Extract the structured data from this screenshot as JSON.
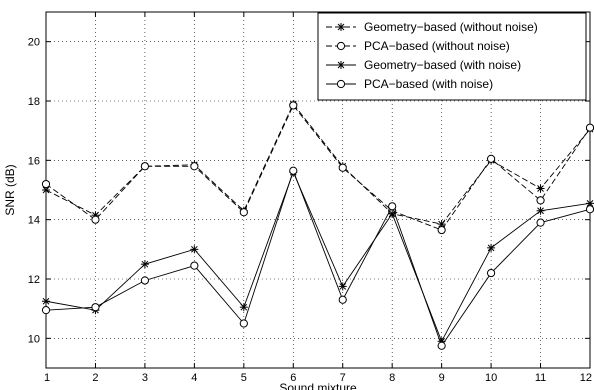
{
  "chart_data": {
    "type": "line",
    "xlabel": "Sound mixture",
    "ylabel": "SNR (dB)",
    "xlim": [
      1,
      12
    ],
    "ylim": [
      9,
      21
    ],
    "x": [
      1,
      2,
      3,
      4,
      5,
      6,
      7,
      8,
      9,
      10,
      11,
      12
    ],
    "xticks": [
      1,
      2,
      3,
      4,
      5,
      6,
      7,
      8,
      9,
      10,
      11,
      12
    ],
    "yticks": [
      10,
      12,
      14,
      16,
      18,
      20
    ],
    "grid": true,
    "legend_position": "top-right",
    "series": [
      {
        "name": "Geometry−based (without noise)",
        "marker": "star",
        "line_style": "dashed",
        "values": [
          15.0,
          14.15,
          15.8,
          15.85,
          14.3,
          17.9,
          15.8,
          14.2,
          13.85,
          16.0,
          15.05,
          17.05
        ]
      },
      {
        "name": "PCA−based (without noise)",
        "marker": "circle",
        "line_style": "dashed",
        "values": [
          15.2,
          14.0,
          15.8,
          15.8,
          14.25,
          17.85,
          15.75,
          14.3,
          13.65,
          16.05,
          14.65,
          17.1
        ]
      },
      {
        "name": "Geometry−based (with noise)",
        "marker": "star",
        "line_style": "solid",
        "values": [
          11.25,
          10.95,
          12.5,
          13.0,
          11.05,
          15.6,
          11.75,
          14.2,
          9.9,
          13.05,
          14.3,
          14.55
        ]
      },
      {
        "name": "PCA−based (with noise)",
        "marker": "circle",
        "line_style": "solid",
        "values": [
          10.95,
          11.05,
          11.95,
          12.45,
          10.5,
          15.65,
          11.3,
          14.45,
          9.75,
          12.2,
          13.9,
          14.35
        ]
      }
    ]
  }
}
